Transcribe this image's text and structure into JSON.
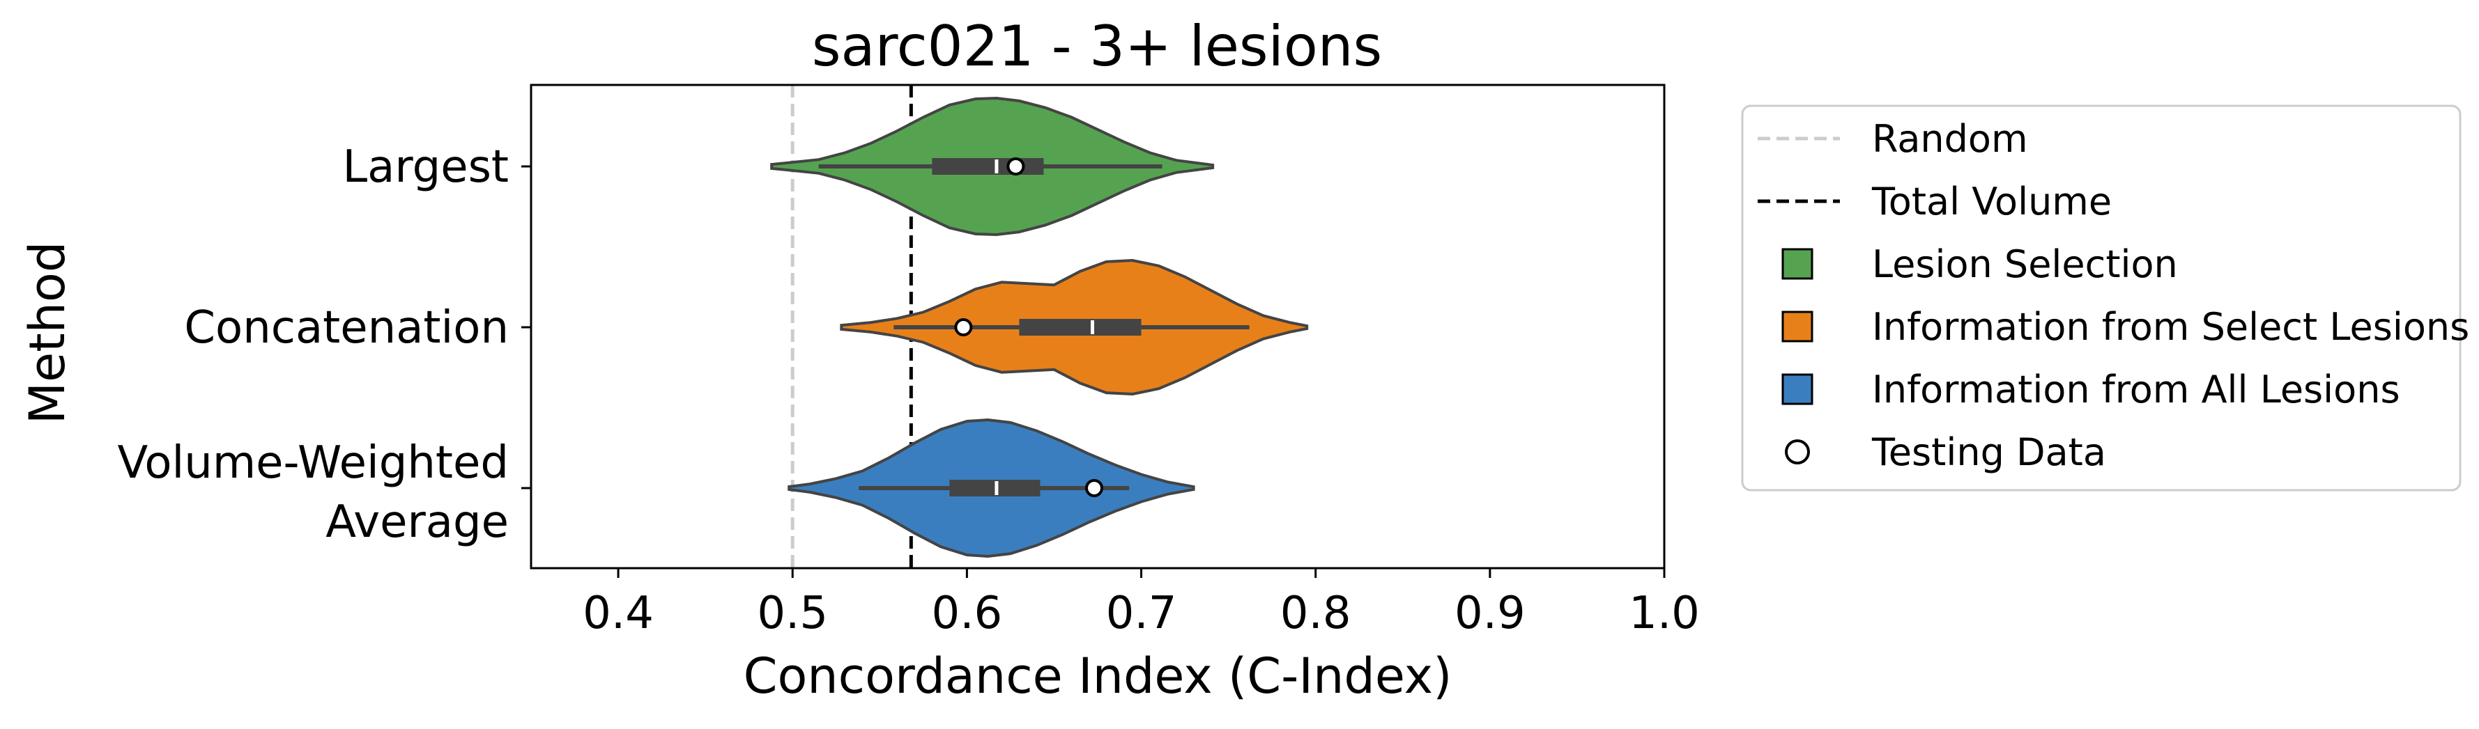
{
  "chart_data": {
    "type": "violin",
    "orientation": "horizontal",
    "title": "sarc021 - 3+ lesions",
    "xlabel": "Concordance Index (C-Index)",
    "ylabel": "Method",
    "xlim": [
      0.35,
      1.0
    ],
    "x_ticks": [
      0.4,
      0.5,
      0.6,
      0.7,
      0.8,
      0.9,
      1.0
    ],
    "x_tick_labels": [
      "0.4",
      "0.5",
      "0.6",
      "0.7",
      "0.8",
      "0.9",
      "1.0"
    ],
    "grid": false,
    "legend_position": "right, outside plot",
    "reference_lines": [
      {
        "name": "Random",
        "x": 0.5,
        "style": "dashed",
        "color": "#cccccc"
      },
      {
        "name": "Total Volume",
        "x": 0.568,
        "style": "dashed",
        "color": "#000000"
      }
    ],
    "categories": [
      {
        "label_lines": [
          "Largest"
        ],
        "group": "Lesion Selection",
        "color": "#55a351",
        "min": 0.488,
        "max": 0.741,
        "whisker_low": 0.515,
        "whisker_high": 0.712,
        "q1": 0.58,
        "median": 0.617,
        "q3": 0.644,
        "testing_point": 0.628,
        "density": [
          [
            0.488,
            0.03
          ],
          [
            0.5,
            0.06
          ],
          [
            0.515,
            0.1
          ],
          [
            0.53,
            0.2
          ],
          [
            0.545,
            0.34
          ],
          [
            0.56,
            0.52
          ],
          [
            0.575,
            0.72
          ],
          [
            0.59,
            0.9
          ],
          [
            0.605,
            0.99
          ],
          [
            0.617,
            1.0
          ],
          [
            0.63,
            0.96
          ],
          [
            0.645,
            0.86
          ],
          [
            0.66,
            0.72
          ],
          [
            0.675,
            0.54
          ],
          [
            0.69,
            0.36
          ],
          [
            0.705,
            0.2
          ],
          [
            0.72,
            0.09
          ],
          [
            0.741,
            0.02
          ]
        ]
      },
      {
        "label_lines": [
          "Concatenation"
        ],
        "group": "Information from Select Lesions",
        "color": "#e8801a",
        "min": 0.528,
        "max": 0.795,
        "whisker_low": 0.558,
        "whisker_high": 0.762,
        "q1": 0.63,
        "median": 0.672,
        "q3": 0.7,
        "testing_point": 0.598,
        "density": [
          [
            0.528,
            0.03
          ],
          [
            0.545,
            0.07
          ],
          [
            0.56,
            0.13
          ],
          [
            0.575,
            0.22
          ],
          [
            0.59,
            0.38
          ],
          [
            0.605,
            0.56
          ],
          [
            0.62,
            0.66
          ],
          [
            0.635,
            0.64
          ],
          [
            0.65,
            0.62
          ],
          [
            0.665,
            0.82
          ],
          [
            0.68,
            0.96
          ],
          [
            0.695,
            0.98
          ],
          [
            0.71,
            0.9
          ],
          [
            0.725,
            0.74
          ],
          [
            0.74,
            0.54
          ],
          [
            0.755,
            0.34
          ],
          [
            0.77,
            0.17
          ],
          [
            0.785,
            0.07
          ],
          [
            0.795,
            0.02
          ]
        ]
      },
      {
        "label_lines": [
          "Volume-Weighted",
          "Average"
        ],
        "group": "Information from All Lesions",
        "color": "#3a7ebf",
        "min": 0.498,
        "max": 0.73,
        "whisker_low": 0.538,
        "whisker_high": 0.693,
        "q1": 0.59,
        "median": 0.617,
        "q3": 0.642,
        "testing_point": 0.673,
        "density": [
          [
            0.498,
            0.02
          ],
          [
            0.51,
            0.06
          ],
          [
            0.525,
            0.14
          ],
          [
            0.54,
            0.25
          ],
          [
            0.555,
            0.44
          ],
          [
            0.57,
            0.66
          ],
          [
            0.585,
            0.86
          ],
          [
            0.6,
            0.98
          ],
          [
            0.612,
            1.0
          ],
          [
            0.625,
            0.96
          ],
          [
            0.64,
            0.84
          ],
          [
            0.655,
            0.68
          ],
          [
            0.67,
            0.5
          ],
          [
            0.685,
            0.34
          ],
          [
            0.7,
            0.2
          ],
          [
            0.715,
            0.09
          ],
          [
            0.73,
            0.02
          ]
        ]
      }
    ],
    "legend": [
      {
        "kind": "dashed-line",
        "label": "Random",
        "color": "#cccccc"
      },
      {
        "kind": "dashed-line",
        "label": "Total Volume",
        "color": "#000000"
      },
      {
        "kind": "square",
        "label": "Lesion Selection",
        "color": "#55a351"
      },
      {
        "kind": "square",
        "label": "Information from Select Lesions",
        "color": "#e8801a"
      },
      {
        "kind": "square",
        "label": "Information from All Lesions",
        "color": "#3a7ebf"
      },
      {
        "kind": "circle",
        "label": "Testing Data",
        "color": "#ffffff"
      }
    ]
  }
}
